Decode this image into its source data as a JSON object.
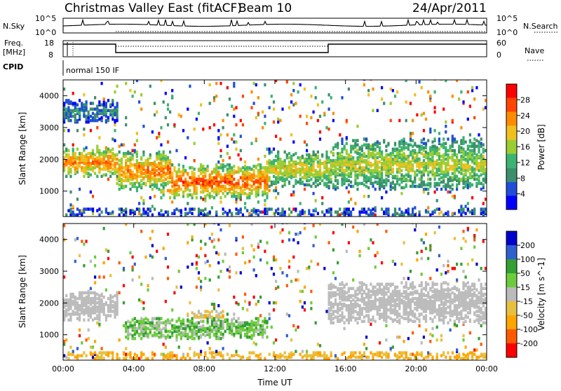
{
  "header": {
    "title": "Christmas Valley East (fitACF)",
    "beam": "Beam 10",
    "date": "24/Apr/2011"
  },
  "strips": {
    "nsky_label": "N.Sky",
    "nsearch_label": "N.Search",
    "count_ticks": [
      "10^5",
      "10^0"
    ],
    "freq_label_line1": "Freq.",
    "freq_label_line2": "[MHz]",
    "freq_ticks": [
      "18",
      "8"
    ],
    "nave_label": "Nave",
    "nave_ticks": [
      "60",
      "0"
    ],
    "cpid_label": "CPID",
    "cpid_text": "normal 150 IF"
  },
  "colors": {
    "power_scale": [
      "#0000ff",
      "#1f4fd6",
      "#3c8f6b",
      "#3cb371",
      "#9acd32",
      "#f0c020",
      "#ff8c00",
      "#ff4500",
      "#ff0000"
    ],
    "velocity_scale": [
      "#ff0000",
      "#ff5a00",
      "#ffa500",
      "#e8c040",
      "#bbbbbb",
      "#6ccc3c",
      "#32a032",
      "#3060d0",
      "#0000cc"
    ],
    "ground_scatter": "#bcbcbc"
  },
  "chart_data": [
    {
      "type": "heatmap",
      "name": "power",
      "xlabel": "",
      "ylabel": "Slant Range [km]",
      "x_ticks": [
        "00:00",
        "04:00",
        "08:00",
        "12:00",
        "16:00",
        "20:00",
        "00:00"
      ],
      "y_ticks": [
        "1000",
        "2000",
        "3000",
        "4000"
      ],
      "ylim": [
        200,
        4500
      ],
      "colorbar_label": "Power [dB]",
      "colorbar_ticks": [
        "4",
        "8",
        "12",
        "16",
        "20",
        "24",
        "28"
      ],
      "regions": [
        {
          "t": [
            0,
            3
          ],
          "range": [
            1400,
            2300
          ],
          "peak": 26
        },
        {
          "t": [
            3,
            6
          ],
          "range": [
            1000,
            2200
          ],
          "peak": 26
        },
        {
          "t": [
            5.5,
            11.5
          ],
          "range": [
            700,
            1800
          ],
          "peak": 28
        },
        {
          "t": [
            11.5,
            15
          ],
          "range": [
            1100,
            2200
          ],
          "peak": 20
        },
        {
          "t": [
            15,
            24
          ],
          "range": [
            1000,
            2600
          ],
          "peak": 18
        },
        {
          "t": [
            0,
            3
          ],
          "range": [
            3100,
            3800
          ],
          "peak": 8
        }
      ]
    },
    {
      "type": "heatmap",
      "name": "velocity",
      "xlabel": "Time UT",
      "ylabel": "Slant Range [km]",
      "x_ticks": [
        "00:00",
        "04:00",
        "08:00",
        "12:00",
        "16:00",
        "20:00",
        "00:00"
      ],
      "y_ticks": [
        "1000",
        "2000",
        "3000",
        "4000"
      ],
      "ylim": [
        200,
        4500
      ],
      "colorbar_label": "Velocity [m s^-1]",
      "colorbar_ticks": [
        "200",
        "100",
        "50",
        "15",
        "-15",
        "-50",
        "-100",
        "-200"
      ],
      "regions": [
        {
          "t": [
            0,
            3
          ],
          "range": [
            1400,
            2300
          ],
          "velocity": 0,
          "ground_scatter": true
        },
        {
          "t": [
            3.5,
            11.5
          ],
          "range": [
            800,
            1500
          ],
          "velocity": 60,
          "ground_scatter": false
        },
        {
          "t": [
            7,
            9
          ],
          "range": [
            1300,
            1700
          ],
          "velocity": -60,
          "ground_scatter": false
        },
        {
          "t": [
            15,
            24
          ],
          "range": [
            1300,
            2600
          ],
          "velocity": 0,
          "ground_scatter": true
        }
      ]
    }
  ]
}
